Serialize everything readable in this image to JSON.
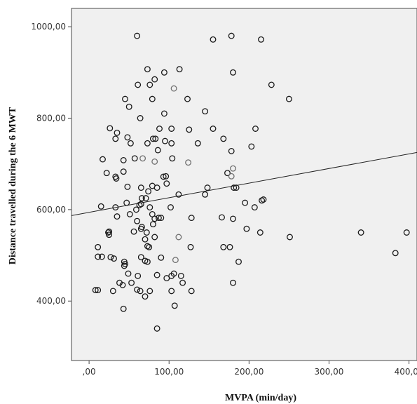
{
  "chart_data": {
    "type": "scatter",
    "title": "",
    "xlabel": "MVPA (min/day)",
    "ylabel": "Distance travelled during the 6 MWT",
    "xlim": [
      -22,
      410
    ],
    "ylim": [
      270,
      1040
    ],
    "xticks": [
      0,
      100,
      200,
      300,
      400
    ],
    "xtick_labels": [
      ",00",
      "100,00",
      "200,00",
      "300,00",
      "400,00"
    ],
    "yticks": [
      400,
      600,
      800,
      1000
    ],
    "ytick_labels": [
      "400,00",
      "600,00",
      "800,00",
      "1000,00"
    ],
    "grid": false,
    "legend": "none",
    "colors": {
      "plot_background": "#f0f0f0",
      "marker": "#1a1a1a",
      "marker_light": "#707070",
      "fit_line": "#222222"
    },
    "fit_line": {
      "x": [
        -22,
        410
      ],
      "y": [
        587,
        725
      ]
    },
    "points": [
      {
        "x": 60,
        "y": 980
      },
      {
        "x": 178,
        "y": 980
      },
      {
        "x": 155,
        "y": 972
      },
      {
        "x": 215,
        "y": 972
      },
      {
        "x": 73,
        "y": 907
      },
      {
        "x": 113,
        "y": 907
      },
      {
        "x": 94,
        "y": 900
      },
      {
        "x": 180,
        "y": 900
      },
      {
        "x": 82,
        "y": 885
      },
      {
        "x": 61,
        "y": 873
      },
      {
        "x": 76,
        "y": 873
      },
      {
        "x": 228,
        "y": 873
      },
      {
        "x": 106,
        "y": 865,
        "light": true
      },
      {
        "x": 45,
        "y": 842
      },
      {
        "x": 79,
        "y": 842
      },
      {
        "x": 123,
        "y": 842
      },
      {
        "x": 250,
        "y": 842
      },
      {
        "x": 50,
        "y": 825
      },
      {
        "x": 145,
        "y": 815
      },
      {
        "x": 94,
        "y": 810
      },
      {
        "x": 64,
        "y": 800
      },
      {
        "x": 26,
        "y": 778
      },
      {
        "x": 88,
        "y": 777
      },
      {
        "x": 103,
        "y": 777
      },
      {
        "x": 125,
        "y": 775
      },
      {
        "x": 155,
        "y": 777
      },
      {
        "x": 208,
        "y": 777
      },
      {
        "x": 35,
        "y": 768
      },
      {
        "x": 48,
        "y": 758
      },
      {
        "x": 33,
        "y": 755
      },
      {
        "x": 80,
        "y": 755
      },
      {
        "x": 83,
        "y": 755
      },
      {
        "x": 168,
        "y": 755
      },
      {
        "x": 95,
        "y": 750
      },
      {
        "x": 52,
        "y": 745
      },
      {
        "x": 73,
        "y": 745
      },
      {
        "x": 103,
        "y": 745
      },
      {
        "x": 136,
        "y": 745
      },
      {
        "x": 203,
        "y": 738
      },
      {
        "x": 86,
        "y": 730
      },
      {
        "x": 178,
        "y": 728
      },
      {
        "x": 17,
        "y": 710
      },
      {
        "x": 43,
        "y": 708
      },
      {
        "x": 57,
        "y": 712
      },
      {
        "x": 67,
        "y": 712,
        "light": true
      },
      {
        "x": 82,
        "y": 705,
        "light": true
      },
      {
        "x": 104,
        "y": 712
      },
      {
        "x": 124,
        "y": 703,
        "light": true
      },
      {
        "x": 43,
        "y": 683
      },
      {
        "x": 22,
        "y": 680
      },
      {
        "x": 173,
        "y": 680
      },
      {
        "x": 180,
        "y": 690,
        "light": true
      },
      {
        "x": 93,
        "y": 672
      },
      {
        "x": 96,
        "y": 673
      },
      {
        "x": 178,
        "y": 673,
        "light": true
      },
      {
        "x": 34,
        "y": 668
      },
      {
        "x": 33,
        "y": 672
      },
      {
        "x": 48,
        "y": 650
      },
      {
        "x": 65,
        "y": 648
      },
      {
        "x": 85,
        "y": 648
      },
      {
        "x": 148,
        "y": 648
      },
      {
        "x": 97,
        "y": 657
      },
      {
        "x": 79,
        "y": 652
      },
      {
        "x": 74,
        "y": 640
      },
      {
        "x": 181,
        "y": 648
      },
      {
        "x": 184,
        "y": 648
      },
      {
        "x": 112,
        "y": 633
      },
      {
        "x": 145,
        "y": 633
      },
      {
        "x": 66,
        "y": 625
      },
      {
        "x": 71,
        "y": 625
      },
      {
        "x": 218,
        "y": 622
      },
      {
        "x": 216,
        "y": 620
      },
      {
        "x": 47,
        "y": 615
      },
      {
        "x": 65,
        "y": 612
      },
      {
        "x": 195,
        "y": 615
      },
      {
        "x": 15,
        "y": 607
      },
      {
        "x": 33,
        "y": 605
      },
      {
        "x": 63,
        "y": 610
      },
      {
        "x": 59,
        "y": 600
      },
      {
        "x": 76,
        "y": 605
      },
      {
        "x": 102,
        "y": 605
      },
      {
        "x": 207,
        "y": 605
      },
      {
        "x": 51,
        "y": 590
      },
      {
        "x": 79,
        "y": 590
      },
      {
        "x": 82,
        "y": 580
      },
      {
        "x": 87,
        "y": 582
      },
      {
        "x": 90,
        "y": 582
      },
      {
        "x": 128,
        "y": 582
      },
      {
        "x": 166,
        "y": 583
      },
      {
        "x": 180,
        "y": 580
      },
      {
        "x": 35,
        "y": 585
      },
      {
        "x": 60,
        "y": 575
      },
      {
        "x": 80,
        "y": 568
      },
      {
        "x": 65,
        "y": 558
      },
      {
        "x": 66,
        "y": 562
      },
      {
        "x": 72,
        "y": 550
      },
      {
        "x": 56,
        "y": 552
      },
      {
        "x": 25,
        "y": 552
      },
      {
        "x": 25,
        "y": 545
      },
      {
        "x": 24,
        "y": 550
      },
      {
        "x": 82,
        "y": 540
      },
      {
        "x": 112,
        "y": 540,
        "light": true
      },
      {
        "x": 197,
        "y": 558
      },
      {
        "x": 214,
        "y": 550
      },
      {
        "x": 251,
        "y": 540
      },
      {
        "x": 340,
        "y": 550
      },
      {
        "x": 397,
        "y": 550
      },
      {
        "x": 70,
        "y": 535
      },
      {
        "x": 73,
        "y": 520
      },
      {
        "x": 75,
        "y": 518
      },
      {
        "x": 127,
        "y": 518
      },
      {
        "x": 168,
        "y": 518
      },
      {
        "x": 176,
        "y": 518
      },
      {
        "x": 11,
        "y": 518
      },
      {
        "x": 11,
        "y": 497
      },
      {
        "x": 16,
        "y": 497
      },
      {
        "x": 27,
        "y": 496
      },
      {
        "x": 31,
        "y": 493
      },
      {
        "x": 65,
        "y": 496
      },
      {
        "x": 90,
        "y": 495
      },
      {
        "x": 108,
        "y": 490,
        "light": true
      },
      {
        "x": 70,
        "y": 488
      },
      {
        "x": 73,
        "y": 486
      },
      {
        "x": 44,
        "y": 486
      },
      {
        "x": 45,
        "y": 481
      },
      {
        "x": 44,
        "y": 477
      },
      {
        "x": 187,
        "y": 486
      },
      {
        "x": 383,
        "y": 505
      },
      {
        "x": 49,
        "y": 460
      },
      {
        "x": 61,
        "y": 455
      },
      {
        "x": 85,
        "y": 457
      },
      {
        "x": 103,
        "y": 455
      },
      {
        "x": 106,
        "y": 460
      },
      {
        "x": 115,
        "y": 455
      },
      {
        "x": 97,
        "y": 450
      },
      {
        "x": 38,
        "y": 440
      },
      {
        "x": 42,
        "y": 435
      },
      {
        "x": 53,
        "y": 440
      },
      {
        "x": 117,
        "y": 440
      },
      {
        "x": 180,
        "y": 440
      },
      {
        "x": 8,
        "y": 424
      },
      {
        "x": 11,
        "y": 424
      },
      {
        "x": 30,
        "y": 422
      },
      {
        "x": 60,
        "y": 425
      },
      {
        "x": 64,
        "y": 422
      },
      {
        "x": 76,
        "y": 422
      },
      {
        "x": 103,
        "y": 422
      },
      {
        "x": 128,
        "y": 422
      },
      {
        "x": 70,
        "y": 410
      },
      {
        "x": 107,
        "y": 390
      },
      {
        "x": 43,
        "y": 383
      },
      {
        "x": 85,
        "y": 340
      }
    ]
  }
}
